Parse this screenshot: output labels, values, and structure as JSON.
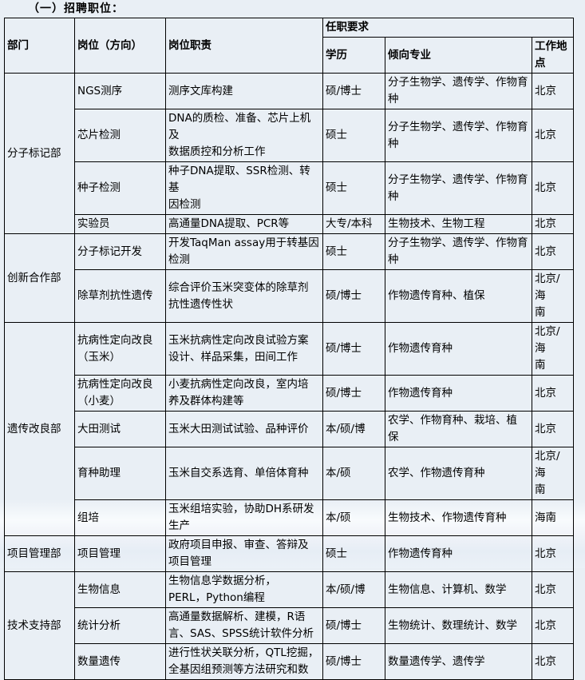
{
  "title": "（一）招聘职位：",
  "table": {
    "headers": {
      "dept": "部门",
      "position": "岗位（方向）",
      "duty": "岗位职责",
      "requirements": "任职要求",
      "education": "学历",
      "major": "倾向专业",
      "location": "工作地点"
    },
    "departments": [
      {
        "name": "分子标记部",
        "positions": [
          {
            "position": "NGS测序",
            "duty": "测序文库构建",
            "education": "硕/博士",
            "major": "分子生物学、遗传学、作物育\n种",
            "location": "北京"
          },
          {
            "position": "芯片检测",
            "duty": "DNA的质检、准备、芯片上机及\n数据质控和分析工作",
            "education": "硕士",
            "major": "分子生物学、遗传学、作物育\n种",
            "location": "北京"
          },
          {
            "position": "种子检测",
            "duty": "种子DNA提取、SSR检测、转基\n因检测",
            "education": "硕士",
            "major": "分子生物学、遗传学、作物育\n种",
            "location": "北京"
          },
          {
            "position": "实验员",
            "duty": "高通量DNA提取、PCR等",
            "education": "大专/本科",
            "major": "生物技术、生物工程",
            "location": "北京"
          }
        ]
      },
      {
        "name": "创新合作部",
        "positions": [
          {
            "position": "分子标记开发",
            "duty": "开发TaqMan assay用于转基因\n检测",
            "education": "硕士",
            "major": "分子生物学、遗传学、作物育\n种",
            "location": "北京"
          },
          {
            "position": "除草剂抗性遗传",
            "duty": "综合评价玉米突变体的除草剂\n抗性遗传性状",
            "education": "硕/博士",
            "major": "作物遗传育种、植保",
            "location": "北京/海\n南"
          }
        ]
      },
      {
        "name": "遗传改良部",
        "positions": [
          {
            "position": "抗病性定向改良\n（玉米）",
            "duty": "玉米抗病性定向改良试验方案\n设计、样品采集，田间工作",
            "education": "硕/博士",
            "major": "作物遗传育种",
            "location": "北京/海\n南"
          },
          {
            "position": "抗病性定向改良\n（小麦）",
            "duty": "小麦抗病性定向改良，室内培\n养及群体构建等",
            "education": "硕/博士",
            "major": "作物遗传育种",
            "location": "北京"
          },
          {
            "position": "大田测试",
            "duty": "玉米大田测试试验、品种评价",
            "education": "本/硕/博",
            "major": "农学、作物育种、栽培、植\n保",
            "location": "北京"
          },
          {
            "position": "育种助理",
            "duty": "玉米自交系选育、单倍体育种",
            "education": "本/硕",
            "major": "农学、作物遗传育种",
            "location": "北京/海\n南"
          },
          {
            "position": "组培",
            "duty": "玉米组培实验，协助DH系研发\n生产",
            "education": "本/硕",
            "major": "生物技术、作物遗传育种",
            "location": "海南"
          }
        ]
      },
      {
        "name": "项目管理部",
        "positions": [
          {
            "position": "项目管理",
            "duty": "政府项目申报、审查、答辩及\n项目管理",
            "education": "硕士",
            "major": "作物遗传育种",
            "location": "北京"
          }
        ]
      },
      {
        "name": "技术支持部",
        "positions": [
          {
            "position": "生物信息",
            "duty": "生物信息学数据分析，\nPERL，Python编程",
            "education": "本/硕/博",
            "major": "生物信息、计算机、数学",
            "location": "北京"
          },
          {
            "position": "统计分析",
            "duty": "高通量数据解析、建模，R语\n言、SAS、SPSS统计软件分析",
            "education": "硕/博士",
            "major": "生物统计、数理统计、数学",
            "location": "北京"
          },
          {
            "position": "数量遗传",
            "duty": "进行性状关联分析，QTL挖掘，\n全基因组预测等方法研究和数",
            "education": "硕/博士",
            "major": "数量遗传学、遗传学",
            "location": "北京"
          }
        ]
      }
    ]
  }
}
